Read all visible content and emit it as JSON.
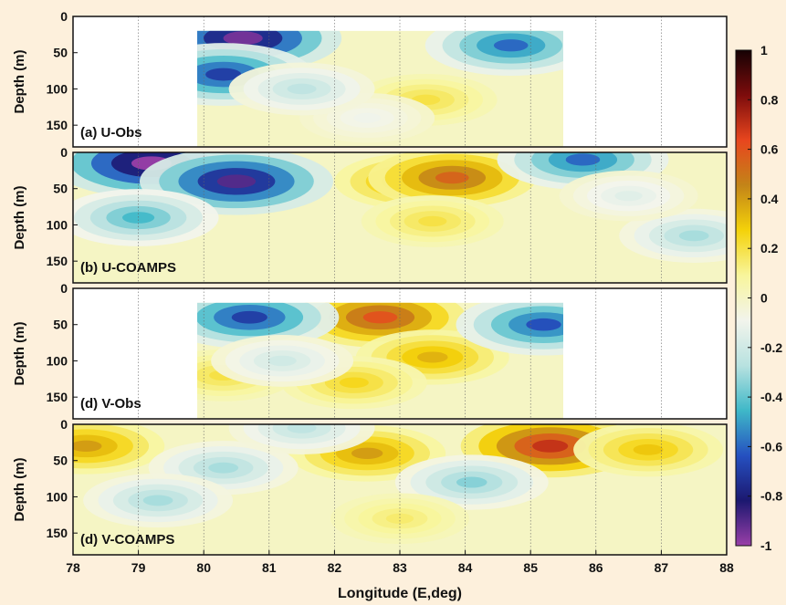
{
  "chart_data": {
    "type": "heatmap",
    "xlabel": "Longitude (E,deg)",
    "x_ticks": [
      "78",
      "79",
      "80",
      "81",
      "82",
      "83",
      "84",
      "85",
      "86",
      "87",
      "88"
    ],
    "xlim": [
      78,
      88
    ],
    "colorbar": {
      "ticks": [
        "1",
        "0.8",
        "0.6",
        "0.4",
        "0.2",
        "0",
        "-0.2",
        "-0.4",
        "-0.6",
        "-0.8",
        "-1"
      ],
      "range": [
        -1,
        1
      ],
      "colors": [
        "#9a3fa8",
        "#1c1870",
        "#2550c0",
        "#3fb8c8",
        "#b8e2e0",
        "#f2f4ec",
        "#f8f59c",
        "#f4d20a",
        "#c38418",
        "#e8461e",
        "#7d0c0c",
        "#160204"
      ]
    },
    "panels": [
      {
        "label": "(a) U-Obs",
        "ylabel": "Depth (m)",
        "y_ticks": [
          "0",
          "50",
          "100",
          "150"
        ],
        "ylim": [
          0,
          180
        ],
        "data_lon_range": [
          79.9,
          85.5
        ],
        "data_depth_range": [
          20,
          180
        ],
        "features": [
          {
            "lon": 80.6,
            "depth": 30,
            "value": -0.95
          },
          {
            "lon": 80.3,
            "depth": 80,
            "value": -0.7
          },
          {
            "lon": 84.7,
            "depth": 40,
            "value": -0.6
          },
          {
            "lon": 83.4,
            "depth": 115,
            "value": 0.2
          },
          {
            "lon": 82.5,
            "depth": 140,
            "value": -0.1
          },
          {
            "lon": 81.5,
            "depth": 100,
            "value": -0.25
          }
        ]
      },
      {
        "label": "(b) U-COAMPS",
        "ylabel": "Depth (m)",
        "y_ticks": [
          "0",
          "50",
          "100",
          "150"
        ],
        "ylim": [
          0,
          180
        ],
        "data_lon_range": [
          78,
          88
        ],
        "data_depth_range": [
          0,
          180
        ],
        "features": [
          {
            "lon": 79.2,
            "depth": 15,
            "value": -1
          },
          {
            "lon": 80.5,
            "depth": 40,
            "value": -0.9
          },
          {
            "lon": 79.0,
            "depth": 90,
            "value": -0.45
          },
          {
            "lon": 83.2,
            "depth": 40,
            "value": 0.4
          },
          {
            "lon": 83.8,
            "depth": 35,
            "value": 0.55
          },
          {
            "lon": 83.5,
            "depth": 95,
            "value": 0.2
          },
          {
            "lon": 85.8,
            "depth": 10,
            "value": -0.6
          },
          {
            "lon": 87.5,
            "depth": 115,
            "value": -0.3
          },
          {
            "lon": 86.5,
            "depth": 60,
            "value": -0.15
          }
        ]
      },
      {
        "label": "(d) V-Obs",
        "ylabel": "Depth (m)",
        "y_ticks": [
          "0",
          "50",
          "100",
          "150"
        ],
        "ylim": [
          0,
          180
        ],
        "data_lon_range": [
          79.9,
          85.5
        ],
        "data_depth_range": [
          20,
          180
        ],
        "features": [
          {
            "lon": 82.7,
            "depth": 40,
            "value": 0.6
          },
          {
            "lon": 83.5,
            "depth": 95,
            "value": 0.35
          },
          {
            "lon": 82.3,
            "depth": 130,
            "value": 0.25
          },
          {
            "lon": 80.7,
            "depth": 40,
            "value": -0.7
          },
          {
            "lon": 85.2,
            "depth": 50,
            "value": -0.65
          },
          {
            "lon": 80.3,
            "depth": 120,
            "value": 0.2
          },
          {
            "lon": 81.2,
            "depth": 100,
            "value": -0.2
          }
        ]
      },
      {
        "label": "(d) V-COAMPS",
        "ylabel": "Depth (m)",
        "y_ticks": [
          "0",
          "50",
          "100",
          "150"
        ],
        "ylim": [
          0,
          180
        ],
        "data_lon_range": [
          78,
          88
        ],
        "data_depth_range": [
          0,
          180
        ],
        "features": [
          {
            "lon": 78.2,
            "depth": 30,
            "value": 0.4
          },
          {
            "lon": 82.5,
            "depth": 40,
            "value": 0.4
          },
          {
            "lon": 85.3,
            "depth": 30,
            "value": 0.7
          },
          {
            "lon": 86.8,
            "depth": 35,
            "value": 0.3
          },
          {
            "lon": 84.1,
            "depth": 80,
            "value": -0.35
          },
          {
            "lon": 80.3,
            "depth": 60,
            "value": -0.3
          },
          {
            "lon": 79.3,
            "depth": 105,
            "value": -0.3
          },
          {
            "lon": 81.5,
            "depth": 5,
            "value": -0.25
          },
          {
            "lon": 83.0,
            "depth": 130,
            "value": 0.15
          }
        ]
      }
    ]
  }
}
